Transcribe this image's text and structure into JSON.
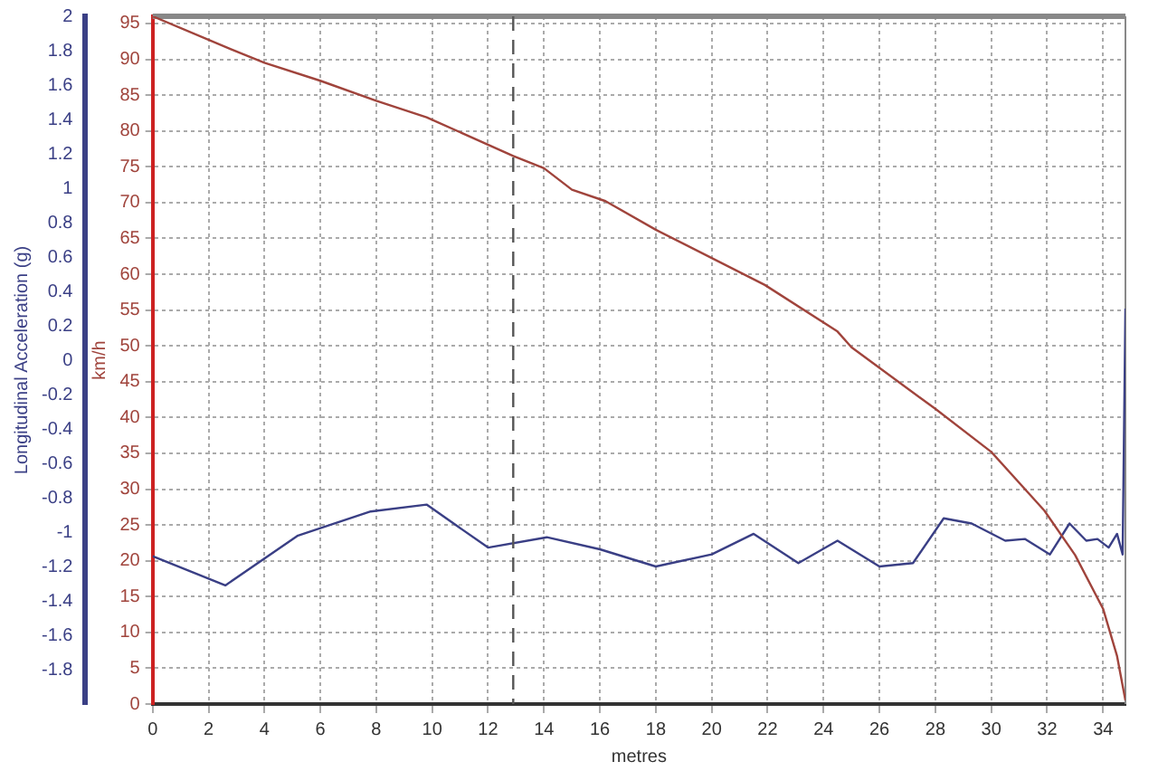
{
  "chart_data": {
    "type": "line",
    "xlabel": "metres",
    "ylabel": "km/h",
    "y2label": "Longitudinal Acceleration (g)",
    "xlim": [
      0,
      34.8
    ],
    "xticks": [
      0,
      2,
      4,
      6,
      8,
      10,
      12,
      14,
      16,
      18,
      20,
      22,
      24,
      26,
      28,
      30,
      32,
      34
    ],
    "ylim": [
      0,
      96
    ],
    "yticks": [
      0,
      5,
      10,
      15,
      20,
      25,
      30,
      35,
      40,
      45,
      50,
      55,
      60,
      65,
      70,
      75,
      80,
      85,
      90,
      95
    ],
    "y2lim": [
      -2,
      2
    ],
    "y2ticks": [
      -1.8,
      -1.6,
      -1.4,
      -1.2,
      -1,
      -0.8,
      -0.6,
      -0.4,
      -0.2,
      0,
      0.2,
      0.4,
      0.6,
      0.8,
      1,
      1.2,
      1.4,
      1.6,
      1.8,
      2
    ],
    "grid": true,
    "legend": false,
    "marker": "none",
    "line_style": "solid",
    "ref_lines": [
      {
        "axis": "x",
        "value": 12.9,
        "color": "#555555",
        "line_style": "dashed"
      }
    ],
    "series": [
      {
        "color": "#a0443c",
        "x": [
          0,
          2.8,
          4,
          6,
          8,
          9.8,
          12.9,
          14,
          15,
          16.2,
          18,
          21.9,
          24.5,
          25,
          28,
          30,
          31.9,
          33,
          34,
          34.5,
          34.8
        ],
        "values": [
          96,
          91.4,
          89.5,
          87,
          84.2,
          81.9,
          76.5,
          74.8,
          71.8,
          70.2,
          66.2,
          58.5,
          52,
          49.8,
          41.2,
          35.2,
          27,
          20.8,
          13.3,
          6.7,
          0.5
        ]
      },
      {
        "color": "#3a3f85",
        "axis": "y2",
        "x": [
          0,
          2.6,
          5.2,
          7.8,
          9.8,
          12,
          14.1,
          16,
          18,
          20,
          21.5,
          23.1,
          24.5,
          26,
          27.2,
          28.3,
          29.3,
          30.5,
          31.2,
          32.1,
          32.8,
          33.4,
          33.8,
          34.2,
          34.5,
          34.7,
          34.8
        ],
        "values": [
          -1.14,
          -1.31,
          -1.02,
          -0.88,
          -0.84,
          -1.09,
          -1.03,
          -1.1,
          -1.2,
          -1.13,
          -1.01,
          -1.18,
          -1.05,
          -1.2,
          -1.18,
          -0.92,
          -0.95,
          -1.05,
          -1.04,
          -1.13,
          -0.95,
          -1.05,
          -1.04,
          -1.09,
          -1.01,
          -1.13,
          0.3
        ]
      }
    ]
  }
}
